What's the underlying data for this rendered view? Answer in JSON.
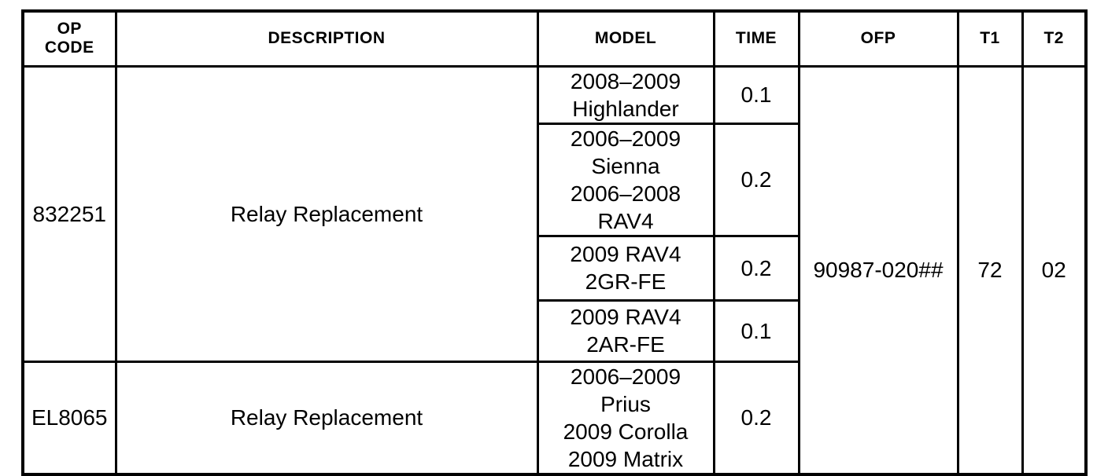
{
  "page": {
    "background_color": "#ffffff",
    "line_color": "#000000"
  },
  "table": {
    "headers": {
      "op_code": "OP\nCODE",
      "description": "DESCRIPTION",
      "model": "MODEL",
      "time": "TIME",
      "ofp": "OFP",
      "t1": "T1",
      "t2": "T2"
    },
    "groups": [
      {
        "op_code": "832251",
        "description": "Relay Replacement",
        "rows": [
          {
            "model": "2008–2009\nHighlander",
            "time": "0.1"
          },
          {
            "model": "2006–2009\nSienna\n2006–2008\nRAV4",
            "time": "0.2"
          },
          {
            "model": "2009 RAV4\n2GR-FE",
            "time": "0.2"
          },
          {
            "model": "2009 RAV4\n2AR-FE",
            "time": "0.1"
          }
        ]
      },
      {
        "op_code": "EL8065",
        "description": "Relay Replacement",
        "rows": [
          {
            "model": "2006–2009\nPrius\n2009 Corolla\n2009 Matrix",
            "time": "0.2"
          }
        ]
      }
    ],
    "shared": {
      "ofp": "90987-020##",
      "t1": "72",
      "t2": "02"
    }
  }
}
